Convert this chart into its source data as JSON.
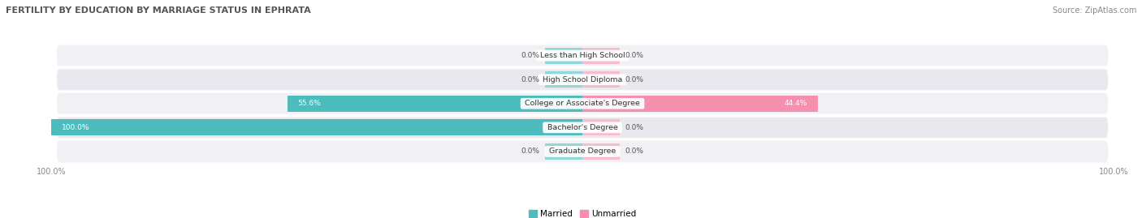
{
  "title": "FERTILITY BY EDUCATION BY MARRIAGE STATUS IN EPHRATA",
  "source": "Source: ZipAtlas.com",
  "categories": [
    "Less than High School",
    "High School Diploma",
    "College or Associate's Degree",
    "Bachelor's Degree",
    "Graduate Degree"
  ],
  "married": [
    0.0,
    0.0,
    55.6,
    100.0,
    0.0
  ],
  "unmarried": [
    0.0,
    0.0,
    44.4,
    0.0,
    0.0
  ],
  "married_color": "#4DBCBC",
  "unmarried_color": "#F48FAE",
  "married_stub_color": "#8ED8D8",
  "unmarried_stub_color": "#F8BBD0",
  "row_bg_odd": "#F0F0F5",
  "row_bg_even": "#E8E8EE",
  "title_color": "#555555",
  "source_color": "#888888",
  "value_color_dark": "#555555",
  "value_color_light": "#ffffff",
  "figsize": [
    14.06,
    2.69
  ],
  "dpi": 100,
  "stub_size": 7.0,
  "bar_height": 0.68
}
